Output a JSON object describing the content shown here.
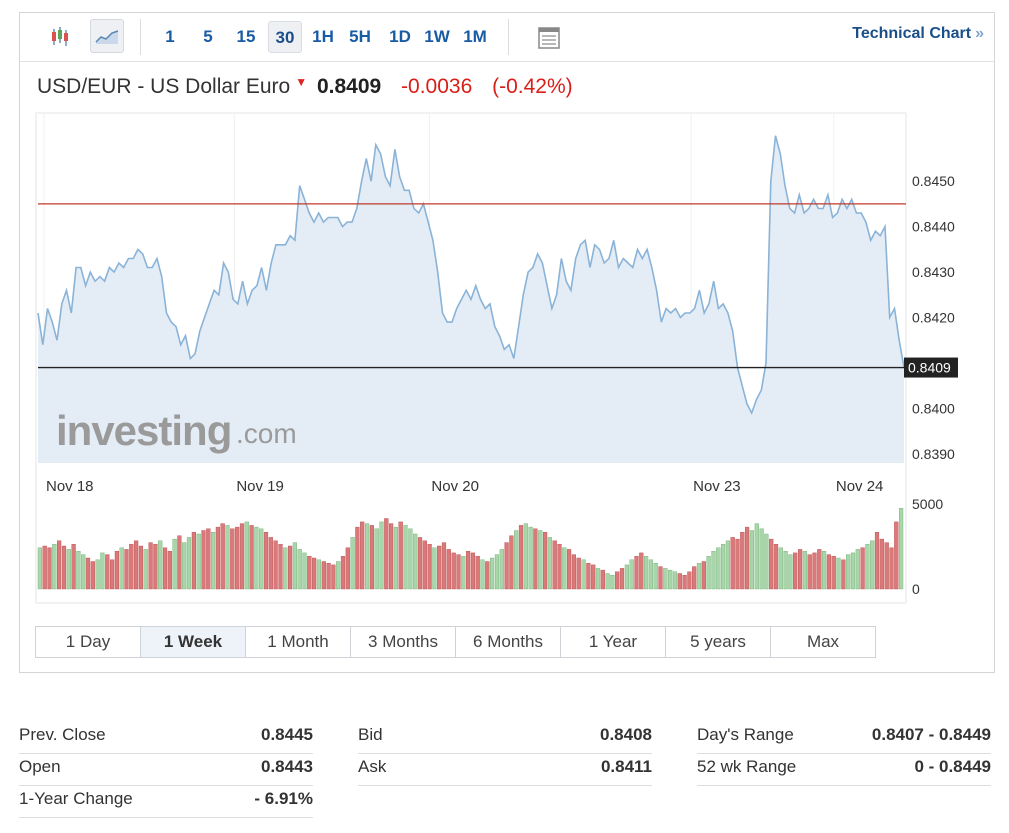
{
  "toolbar": {
    "intervals": [
      "1",
      "5",
      "15",
      "30",
      "1H",
      "5H",
      "1D",
      "1W",
      "1M"
    ],
    "active_interval": "30",
    "technical_chart_label": "Technical Chart",
    "technical_chart_arrow": "»"
  },
  "quote": {
    "name": "USD/EUR - US Dollar Euro",
    "last": "0.8409",
    "change": "-0.0036",
    "change_pct": "(-0.42%)"
  },
  "watermark": "investing.com",
  "range_tabs": [
    "1 Day",
    "1 Week",
    "1 Month",
    "3 Months",
    "6 Months",
    "1 Year",
    "5 years",
    "Max"
  ],
  "active_range": "1 Week",
  "stats": {
    "col1": [
      {
        "label": "Prev. Close",
        "value": "0.8445"
      },
      {
        "label": "Open",
        "value": "0.8443"
      },
      {
        "label": "1-Year Change",
        "value": "- 6.91%"
      }
    ],
    "col2": [
      {
        "label": "Bid",
        "value": "0.8408"
      },
      {
        "label": "Ask",
        "value": "0.8411"
      }
    ],
    "col3": [
      {
        "label": "Day's Range",
        "value": "0.8407 - 0.8449"
      },
      {
        "label": "52 wk Range",
        "value": "0 - 0.8449"
      }
    ]
  },
  "chart_data": {
    "type": "area",
    "ylim": [
      0.8388,
      0.8465
    ],
    "y_ticks": [
      "0.8450",
      "0.8440",
      "0.8430",
      "0.8420",
      "0.8400",
      "0.8390"
    ],
    "x_ticks": [
      {
        "label": "Nov 18",
        "index": 0
      },
      {
        "label": "Nov 19",
        "index": 40
      },
      {
        "label": "Nov 20",
        "index": 81
      },
      {
        "label": "Nov 23",
        "index": 136
      },
      {
        "label": "Nov 24",
        "index": 166
      }
    ],
    "reference_line": {
      "value": 0.8445,
      "color": "#c0392b"
    },
    "last_value_line": {
      "value": 0.8409,
      "label": "0.8409",
      "color": "#222222"
    },
    "line_color": "#8ab3d8",
    "fill_color": "#e4edf6",
    "values": [
      0.8421,
      0.8414,
      0.8422,
      0.8419,
      0.8415,
      0.8423,
      0.8426,
      0.8421,
      0.8431,
      0.8431,
      0.8427,
      0.843,
      0.8428,
      0.8429,
      0.8428,
      0.8431,
      0.843,
      0.8432,
      0.8431,
      0.8433,
      0.8433,
      0.8435,
      0.8434,
      0.8431,
      0.8431,
      0.8433,
      0.8429,
      0.8421,
      0.8419,
      0.8418,
      0.8414,
      0.8416,
      0.8411,
      0.8412,
      0.8417,
      0.842,
      0.8423,
      0.8426,
      0.8425,
      0.8432,
      0.843,
      0.8424,
      0.8423,
      0.8428,
      0.8423,
      0.8426,
      0.8427,
      0.8431,
      0.8426,
      0.8432,
      0.8436,
      0.8436,
      0.8436,
      0.8438,
      0.8437,
      0.8449,
      0.8446,
      0.8443,
      0.8441,
      0.8443,
      0.8441,
      0.8442,
      0.8442,
      0.8442,
      0.844,
      0.8441,
      0.8441,
      0.8444,
      0.845,
      0.8455,
      0.845,
      0.8458,
      0.8456,
      0.8451,
      0.8449,
      0.8457,
      0.8451,
      0.8448,
      0.8448,
      0.8444,
      0.8443,
      0.8445,
      0.8441,
      0.8437,
      0.843,
      0.8421,
      0.8419,
      0.8419,
      0.8422,
      0.8424,
      0.8426,
      0.8424,
      0.8427,
      0.8424,
      0.8422,
      0.8423,
      0.8418,
      0.8416,
      0.8413,
      0.8414,
      0.8411,
      0.8418,
      0.8425,
      0.843,
      0.8431,
      0.8434,
      0.8432,
      0.8427,
      0.8422,
      0.8425,
      0.8433,
      0.8428,
      0.8426,
      0.8433,
      0.8436,
      0.8437,
      0.8431,
      0.8436,
      0.8435,
      0.8432,
      0.8433,
      0.8437,
      0.8431,
      0.8433,
      0.8432,
      0.8431,
      0.8435,
      0.8433,
      0.8435,
      0.8431,
      0.8426,
      0.8419,
      0.8422,
      0.8421,
      0.8422,
      0.842,
      0.8421,
      0.8421,
      0.8422,
      0.8426,
      0.8421,
      0.8423,
      0.8428,
      0.8422,
      0.8423,
      0.8421,
      0.8417,
      0.8409,
      0.8405,
      0.8401,
      0.8399,
      0.8402,
      0.8404,
      0.841,
      0.845,
      0.846,
      0.8456,
      0.8449,
      0.8444,
      0.8443,
      0.8447,
      0.8443,
      0.8444,
      0.8446,
      0.8444,
      0.8444,
      0.8447,
      0.8442,
      0.8443,
      0.8446,
      0.8444,
      0.8446,
      0.8443,
      0.8443,
      0.8441,
      0.8437,
      0.8439,
      0.8438,
      0.844,
      0.842,
      0.8422,
      0.8415,
      0.8409
    ],
    "volume": {
      "ylim": [
        0,
        5000
      ],
      "y_ticks": [
        "5000",
        "0"
      ],
      "up_color": "#a8d5a9",
      "down_color": "#d9797a",
      "bars": [
        2400,
        2500,
        2400,
        2600,
        2800,
        2500,
        2300,
        2600,
        2200,
        2000,
        1800,
        1600,
        1700,
        2100,
        2000,
        1700,
        2200,
        2400,
        2300,
        2600,
        2800,
        2500,
        2300,
        2700,
        2600,
        2800,
        2400,
        2200,
        2900,
        3100,
        2700,
        3000,
        3300,
        3200,
        3400,
        3500,
        3300,
        3600,
        3800,
        3700,
        3500,
        3600,
        3800,
        3900,
        3700,
        3600,
        3500,
        3300,
        3000,
        2800,
        2600,
        2400,
        2500,
        2700,
        2300,
        2100,
        1900,
        1800,
        1700,
        1600,
        1500,
        1400,
        1600,
        1900,
        2400,
        3000,
        3600,
        3900,
        3800,
        3700,
        3500,
        3900,
        4100,
        3800,
        3600,
        3900,
        3700,
        3500,
        3200,
        3000,
        2800,
        2600,
        2400,
        2500,
        2700,
        2300,
        2100,
        2000,
        1900,
        2200,
        2100,
        1900,
        1700,
        1600,
        1800,
        2000,
        2300,
        2700,
        3100,
        3400,
        3700,
        3800,
        3600,
        3500,
        3400,
        3300,
        3000,
        2800,
        2600,
        2400,
        2300,
        2000,
        1800,
        1700,
        1500,
        1400,
        1200,
        1100,
        900,
        800,
        1000,
        1200,
        1400,
        1700,
        1900,
        2100,
        1900,
        1700,
        1500,
        1300,
        1200,
        1100,
        1000,
        900,
        800,
        1000,
        1300,
        1500,
        1600,
        1900,
        2200,
        2400,
        2600,
        2800,
        3000,
        2900,
        3300,
        3600,
        3400,
        3800,
        3500,
        3200,
        2900,
        2600,
        2400,
        2200,
        2000,
        2100,
        2300,
        2200,
        2000,
        2100,
        2300,
        2200,
        2000,
        1900,
        1800,
        1700,
        2000,
        2100,
        2300,
        2400,
        2600,
        2800,
        3300,
        2900,
        2700,
        2400,
        3900,
        4700
      ],
      "directions": "uddudduduudduudddudddduddudduduududdudduddduduudddduduuudduddduddudduduudduduuuddduddddduddduduuudduduudududdudddudduduudduudduuuduuudddduduuuuudddduuuudduuuddudddudduduuuduudddddu"
    }
  }
}
